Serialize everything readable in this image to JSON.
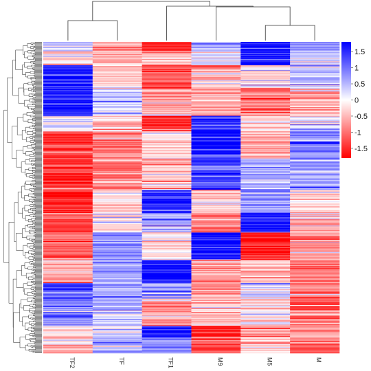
{
  "chart_data": {
    "type": "heatmap",
    "title": "",
    "xlabel": "",
    "ylabel": "",
    "columns": [
      "TF2",
      "TF",
      "TF1",
      "M9",
      "M5",
      "M"
    ],
    "row_count": 400,
    "color_range": [
      -1.8,
      1.8
    ],
    "colors": {
      "low": "#ff0000",
      "mid": "#ffffff",
      "high": "#0000ff"
    },
    "colorbar_ticks": [
      {
        "label": "1.5",
        "value": 1.5
      },
      {
        "label": "1",
        "value": 1.0
      },
      {
        "label": "0.5",
        "value": 0.5
      },
      {
        "label": "0",
        "value": 0.0
      },
      {
        "label": "-0.5",
        "value": -0.5
      },
      {
        "label": "-1",
        "value": -1.0
      },
      {
        "label": "-1.5",
        "value": -1.5
      }
    ],
    "row_blocks": [
      {
        "rows": 12,
        "values": [
          0.3,
          -0.8,
          -1.5,
          0.6,
          1.7,
          0.7
        ]
      },
      {
        "rows": 18,
        "values": [
          -0.3,
          -0.6,
          -0.4,
          0.2,
          1.6,
          0.5
        ]
      },
      {
        "rows": 30,
        "values": [
          1.5,
          -0.4,
          -1.3,
          -0.5,
          -0.2,
          0.4
        ]
      },
      {
        "rows": 35,
        "values": [
          1.6,
          0.4,
          -0.6,
          -0.7,
          -0.9,
          -0.5
        ]
      },
      {
        "rows": 20,
        "values": [
          0.2,
          -0.3,
          -1.6,
          1.5,
          -0.4,
          0.3
        ]
      },
      {
        "rows": 35,
        "values": [
          -1.4,
          -0.8,
          -0.3,
          1.6,
          -0.6,
          0.9
        ]
      },
      {
        "rows": 40,
        "values": [
          -1.5,
          -0.9,
          -0.4,
          1.3,
          0.6,
          0.7
        ]
      },
      {
        "rows": 30,
        "values": [
          -1.6,
          -0.3,
          1.4,
          -0.5,
          0.8,
          -0.4
        ]
      },
      {
        "rows": 25,
        "values": [
          -1.3,
          -0.2,
          0.6,
          -1.0,
          1.6,
          -0.6
        ]
      },
      {
        "rows": 35,
        "values": [
          -1.0,
          0.8,
          -0.2,
          1.7,
          -1.5,
          -0.7
        ]
      },
      {
        "rows": 30,
        "values": [
          -0.7,
          0.5,
          1.7,
          -0.6,
          -0.4,
          -0.9
        ]
      },
      {
        "rows": 20,
        "values": [
          1.4,
          0.7,
          0.8,
          -0.9,
          0.3,
          -0.8
        ]
      },
      {
        "rows": 35,
        "values": [
          0.9,
          0.4,
          -0.7,
          -0.4,
          -0.2,
          -1.0
        ]
      },
      {
        "rows": 15,
        "values": [
          -0.2,
          0.1,
          1.6,
          -1.5,
          -0.7,
          -0.5
        ]
      },
      {
        "rows": 20,
        "values": [
          -0.5,
          0.5,
          0.9,
          -1.2,
          -0.3,
          -1.1
        ]
      }
    ]
  }
}
